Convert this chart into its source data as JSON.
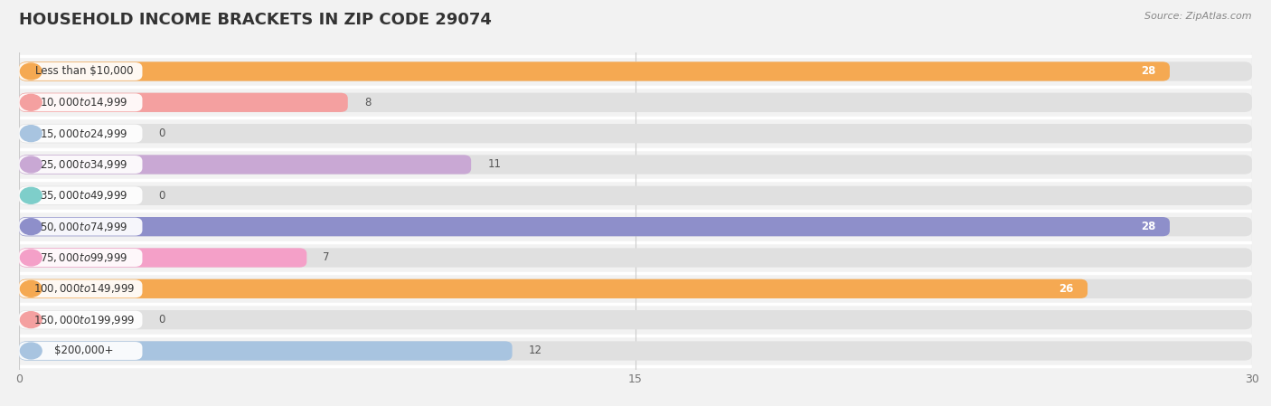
{
  "title": "HOUSEHOLD INCOME BRACKETS IN ZIP CODE 29074",
  "source": "Source: ZipAtlas.com",
  "categories": [
    "Less than $10,000",
    "$10,000 to $14,999",
    "$15,000 to $24,999",
    "$25,000 to $34,999",
    "$35,000 to $49,999",
    "$50,000 to $74,999",
    "$75,000 to $99,999",
    "$100,000 to $149,999",
    "$150,000 to $199,999",
    "$200,000+"
  ],
  "values": [
    28,
    8,
    0,
    11,
    0,
    28,
    7,
    26,
    0,
    12
  ],
  "bar_colors": [
    "#F5A952",
    "#F4A0A0",
    "#A8C4E0",
    "#C9A8D4",
    "#7ECECA",
    "#8E8FCA",
    "#F4A0C8",
    "#F5A952",
    "#F4A0A0",
    "#A8C4E0"
  ],
  "xlim": [
    0,
    30
  ],
  "xticks": [
    0,
    15,
    30
  ],
  "background_color": "#f2f2f2",
  "bar_bg_color": "#e0e0e0",
  "title_fontsize": 13,
  "label_fontsize": 8.5,
  "value_fontsize": 8.5,
  "bar_height": 0.62
}
